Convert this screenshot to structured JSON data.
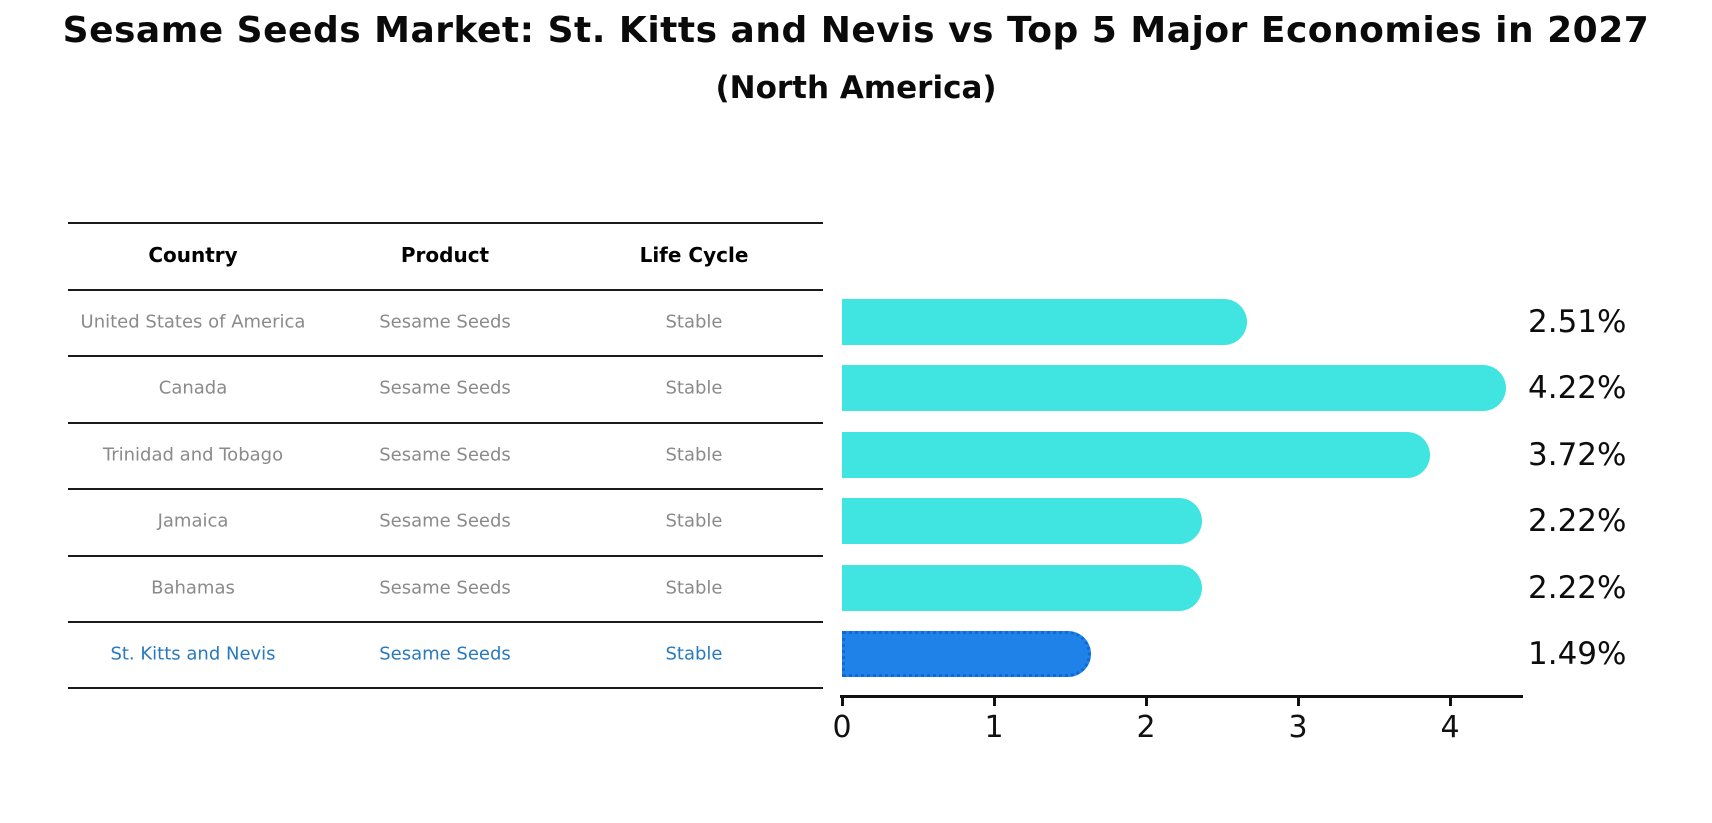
{
  "title": "Sesame Seeds Market: St. Kitts and Nevis vs Top 5 Major Economies in 2027",
  "subtitle": "(North America)",
  "table": {
    "headers": [
      "Country",
      "Product",
      "Life Cycle"
    ],
    "rows": [
      {
        "country": "United States of America",
        "product": "Sesame Seeds",
        "life_cycle": "Stable",
        "highlight": false
      },
      {
        "country": "Canada",
        "product": "Sesame Seeds",
        "life_cycle": "Stable",
        "highlight": false
      },
      {
        "country": "Trinidad and Tobago",
        "product": "Sesame Seeds",
        "life_cycle": "Stable",
        "highlight": false
      },
      {
        "country": "Jamaica",
        "product": "Sesame Seeds",
        "life_cycle": "Stable",
        "highlight": false
      },
      {
        "country": "Bahamas",
        "product": "Sesame Seeds",
        "life_cycle": "Stable",
        "highlight": false
      },
      {
        "country": "St. Kitts and Nevis",
        "product": "Sesame Seeds",
        "life_cycle": "Stable",
        "highlight": true
      }
    ]
  },
  "chart_data": {
    "type": "bar",
    "orientation": "horizontal",
    "categories": [
      "United States of America",
      "Canada",
      "Trinidad and Tobago",
      "Jamaica",
      "Bahamas",
      "St. Kitts and Nevis"
    ],
    "values": [
      2.51,
      4.22,
      3.72,
      2.22,
      2.22,
      1.49
    ],
    "value_labels": [
      "2.51%",
      "4.22%",
      "3.72%",
      "2.22%",
      "2.22%",
      "1.49%"
    ],
    "highlight_index": 5,
    "x_ticks": [
      0,
      1,
      2,
      3,
      4
    ],
    "xlim": [
      0,
      4.48
    ],
    "grid": false,
    "legend": false,
    "colors": {
      "bar": "#40e4e0",
      "highlight_bar": "#1e82e8",
      "highlight_border": "#1068d9",
      "highlight_text": "#2879be",
      "row_text": "#8a8a8a",
      "header_text": "#000000",
      "axis_text": "#111111"
    }
  }
}
